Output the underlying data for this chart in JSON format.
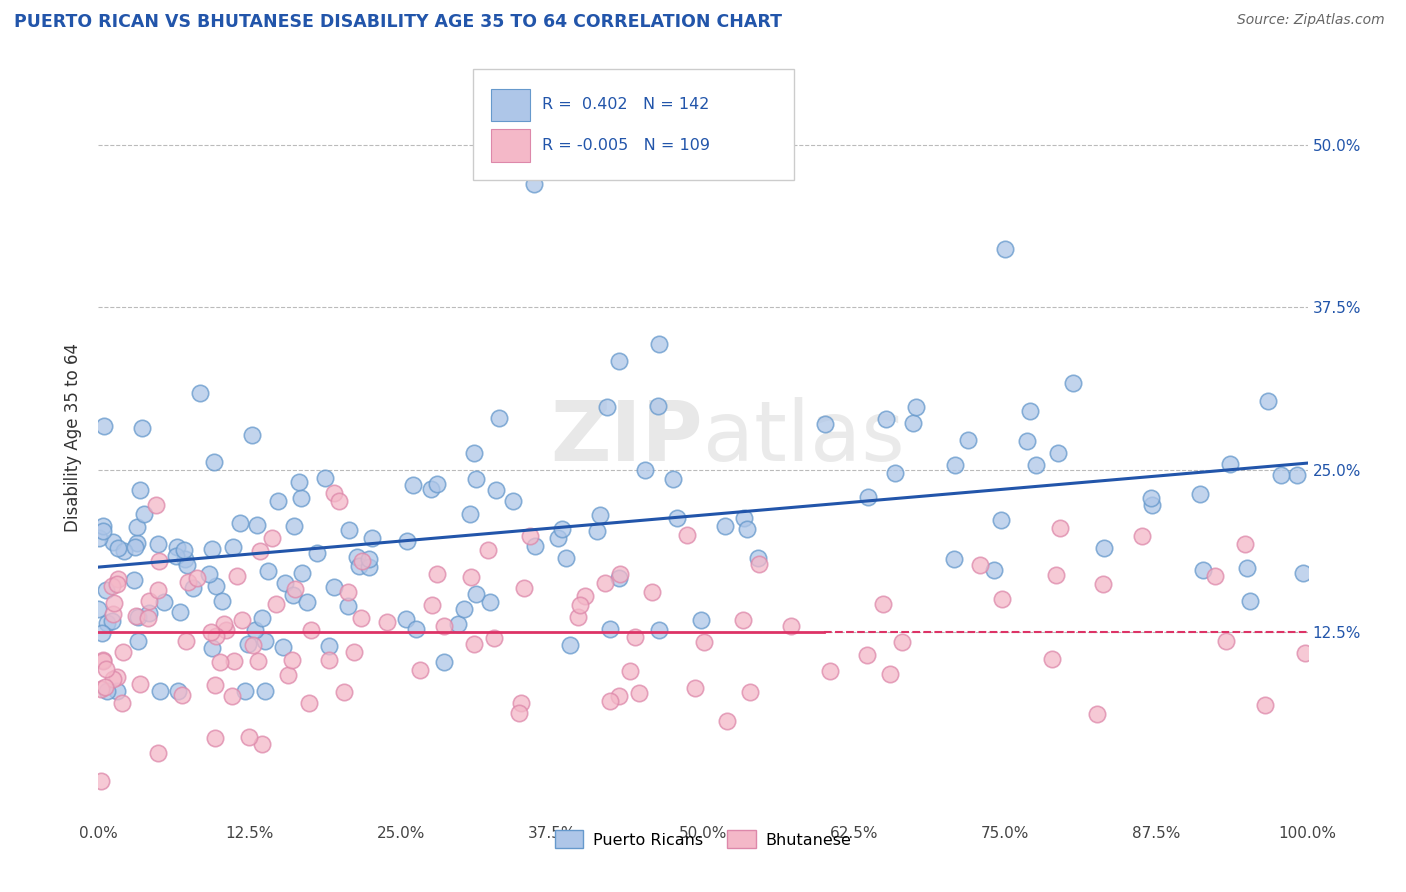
{
  "title": "PUERTO RICAN VS BHUTANESE DISABILITY AGE 35 TO 64 CORRELATION CHART",
  "source": "Source: ZipAtlas.com",
  "ylabel": "Disability Age 35 to 64",
  "watermark": "ZIPatlas",
  "blue_R": 0.402,
  "blue_N": 142,
  "pink_R": -0.005,
  "pink_N": 109,
  "xlim": [
    0.0,
    1.0
  ],
  "ylim": [
    -0.02,
    0.57
  ],
  "xtick_labels": [
    "0.0%",
    "12.5%",
    "25.0%",
    "37.5%",
    "50.0%",
    "62.5%",
    "75.0%",
    "87.5%",
    "100.0%"
  ],
  "xtick_vals": [
    0.0,
    0.125,
    0.25,
    0.375,
    0.5,
    0.625,
    0.75,
    0.875,
    1.0
  ],
  "ytick_labels": [
    "12.5%",
    "25.0%",
    "37.5%",
    "50.0%"
  ],
  "ytick_vals": [
    0.125,
    0.25,
    0.375,
    0.5
  ],
  "blue_face_color": "#aec6e8",
  "blue_edge_color": "#6699cc",
  "blue_line_color": "#2255aa",
  "pink_face_color": "#f4b8c8",
  "pink_edge_color": "#dd88aa",
  "pink_line_color": "#dd3366",
  "legend_label_blue": "Puerto Ricans",
  "legend_label_pink": "Bhutanese",
  "grid_color": "#bbbbbb",
  "background_color": "#ffffff",
  "title_color": "#2255aa",
  "source_color": "#666666",
  "blue_line_start_y": 0.175,
  "blue_line_end_y": 0.255,
  "pink_line_y": 0.125
}
